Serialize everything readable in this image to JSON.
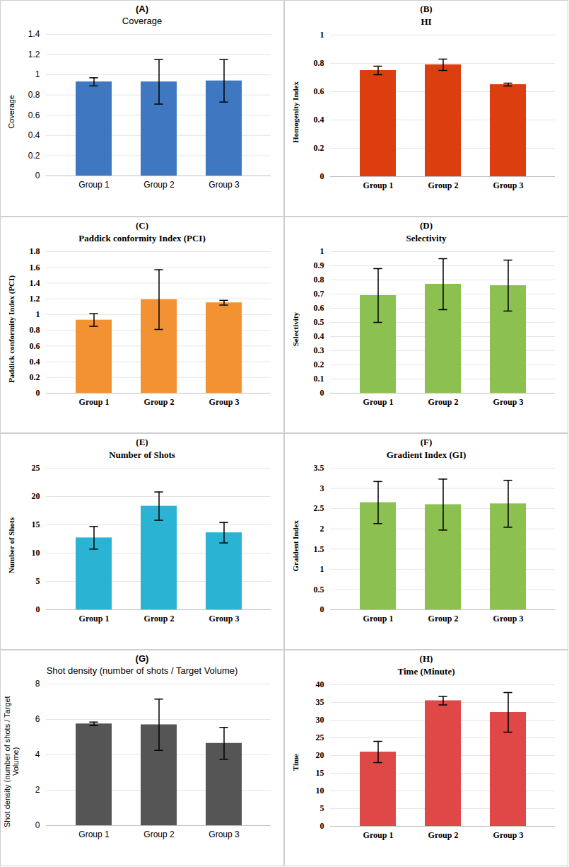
{
  "chart_data": [
    {
      "type": "bar",
      "title": "(A)",
      "subtitle": "Coverage",
      "ylabel": "Coverage",
      "categories": [
        "Group 1",
        "Group 2",
        "Group 3"
      ],
      "values": [
        0.93,
        0.93,
        0.94
      ],
      "errors": [
        0.04,
        0.22,
        0.21
      ],
      "color": "#3f78c0",
      "ylim": [
        0,
        1.4
      ],
      "yticks": [
        0,
        0.2,
        0.4,
        0.6,
        0.8,
        1,
        1.2,
        1.4
      ],
      "grid": true
    },
    {
      "type": "bar",
      "title": "(B)",
      "subtitle": "HI",
      "ylabel": "Homogenity Index",
      "categories": [
        "Group 1",
        "Group 2",
        "Group 3"
      ],
      "values": [
        0.75,
        0.79,
        0.65
      ],
      "errors": [
        0.03,
        0.04,
        0.01
      ],
      "color": "#dd3e10",
      "ylim": [
        0,
        1
      ],
      "yticks": [
        0,
        0.2,
        0.4,
        0.6,
        0.8,
        1
      ],
      "grid": true
    },
    {
      "type": "bar",
      "title": "(C)",
      "subtitle": "Paddick conformity Index (PCI)",
      "ylabel": "Paddick conformity Index (PCI)",
      "categories": [
        "Group 1",
        "Group 2",
        "Group 3"
      ],
      "values": [
        0.93,
        1.19,
        1.15
      ],
      "errors": [
        0.08,
        0.38,
        0.03
      ],
      "color": "#f29233",
      "ylim": [
        0,
        1.8
      ],
      "yticks": [
        0,
        0.2,
        0.4,
        0.6,
        0.8,
        1,
        1.2,
        1.4,
        1.6,
        1.8
      ],
      "grid": true
    },
    {
      "type": "bar",
      "title": "(D)",
      "subtitle": "Selectivity",
      "ylabel": "Selectivity",
      "categories": [
        "Group 1",
        "Group 2",
        "Group 3"
      ],
      "values": [
        0.69,
        0.77,
        0.76
      ],
      "errors": [
        0.19,
        0.18,
        0.18
      ],
      "color": "#8cc152",
      "ylim": [
        0,
        1
      ],
      "yticks": [
        0,
        0.1,
        0.2,
        0.3,
        0.4,
        0.5,
        0.6,
        0.7,
        0.8,
        0.9,
        1
      ],
      "grid": true
    },
    {
      "type": "bar",
      "title": "(E)",
      "subtitle": "Number of Shots",
      "ylabel": "Number of Shots",
      "categories": [
        "Group 1",
        "Group 2",
        "Group 3"
      ],
      "values": [
        12.7,
        18.3,
        13.6
      ],
      "errors": [
        2,
        2.5,
        1.8
      ],
      "color": "#2bb3d4",
      "ylim": [
        0,
        25
      ],
      "yticks": [
        0,
        5,
        10,
        15,
        20,
        25
      ],
      "grid": true
    },
    {
      "type": "bar",
      "title": "(F)",
      "subtitle": "Gradient Index (GI)",
      "ylabel": "Graident Index",
      "categories": [
        "Group 1",
        "Group 2",
        "Group 3"
      ],
      "values": [
        2.65,
        2.6,
        2.62
      ],
      "errors": [
        0.52,
        0.63,
        0.58
      ],
      "color": "#8cc152",
      "ylim": [
        0,
        3.5
      ],
      "yticks": [
        0,
        0.5,
        1,
        1.5,
        2,
        2.5,
        3,
        3.5
      ],
      "grid": true
    },
    {
      "type": "bar",
      "title": "(G)",
      "subtitle": "Shot density (number of shots / Target Volume)",
      "ylabel": "Shot density (number of shots / Target Volume)",
      "categories": [
        "Group 1",
        "Group 2",
        "Group 3"
      ],
      "values": [
        5.75,
        5.7,
        4.65
      ],
      "errors": [
        0.1,
        1.45,
        0.9
      ],
      "color": "#555555",
      "ylim": [
        0,
        8
      ],
      "yticks": [
        0,
        2,
        4,
        6,
        8
      ],
      "grid": true
    },
    {
      "type": "bar",
      "title": "(H)",
      "subtitle": "Time (Minute)",
      "ylabel": "Time",
      "categories": [
        "Group 1",
        "Group 2",
        "Group 3"
      ],
      "values": [
        21,
        35.5,
        32.2
      ],
      "errors": [
        3,
        1.2,
        5.6
      ],
      "color": "#e04848",
      "ylim": [
        0,
        40
      ],
      "yticks": [
        0,
        5,
        10,
        15,
        20,
        25,
        30,
        35,
        40
      ],
      "grid": true
    }
  ]
}
